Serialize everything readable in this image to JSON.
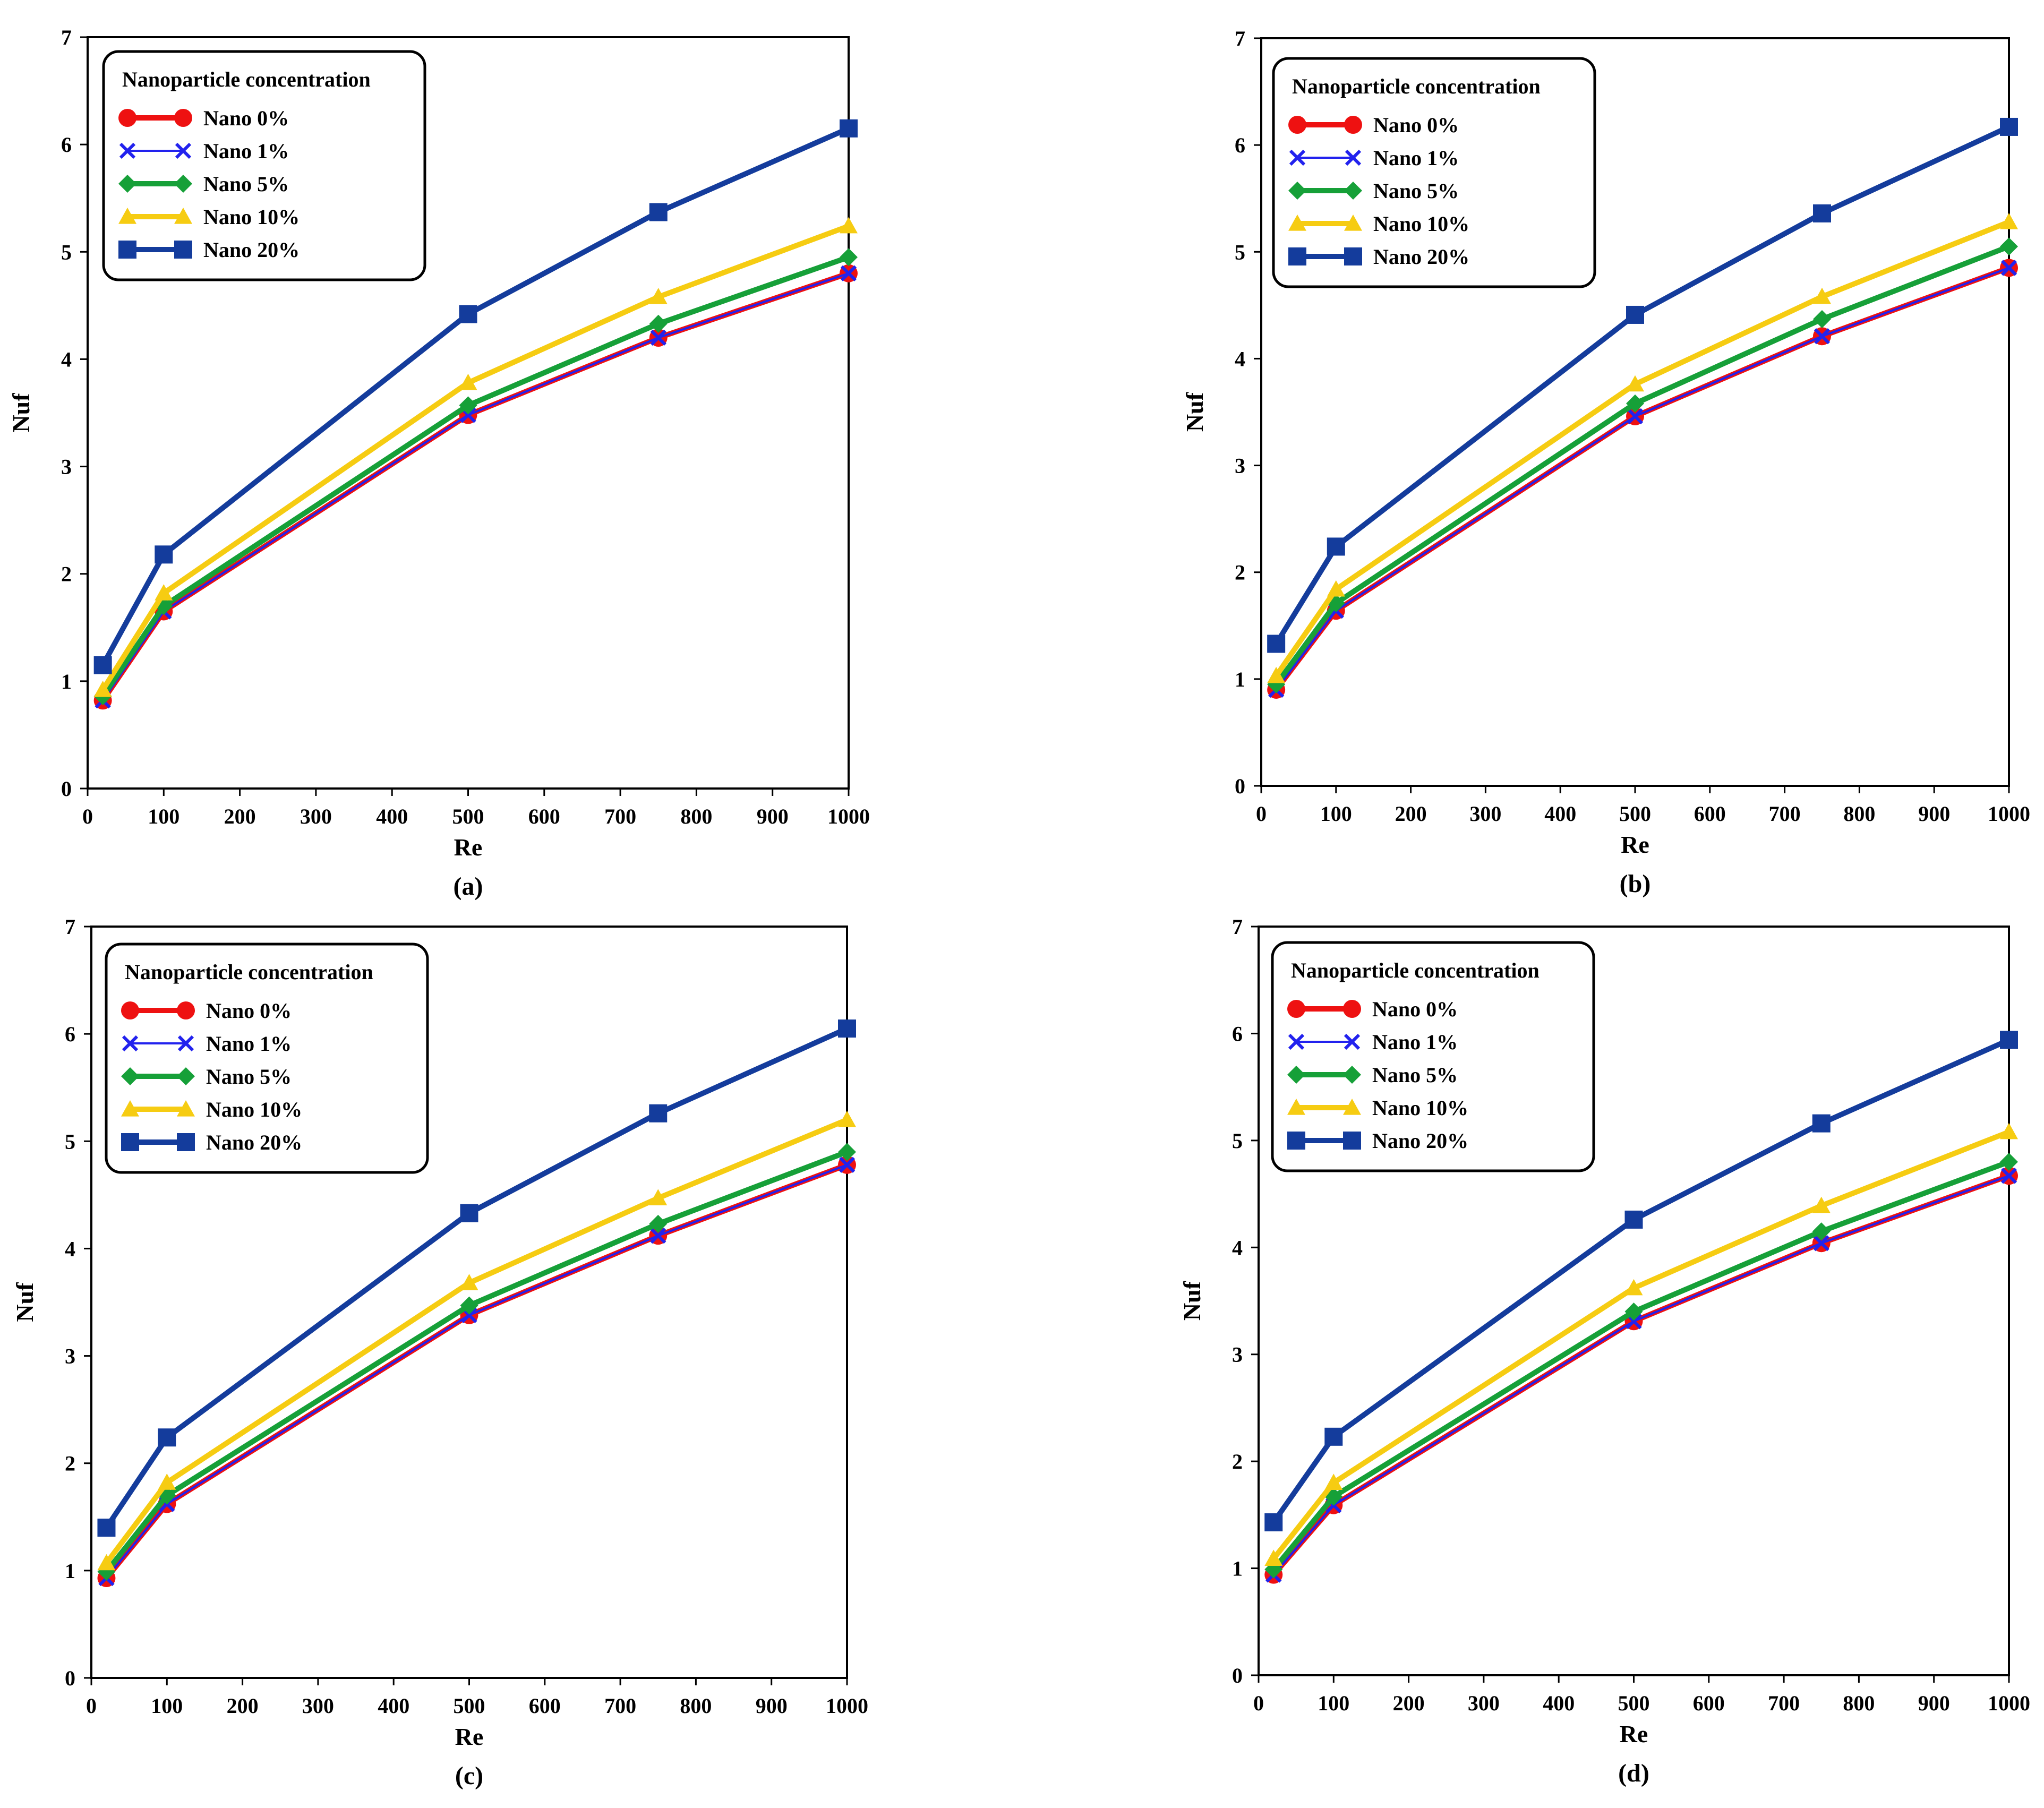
{
  "figure": {
    "legend_title": "Nanoparticle concentration",
    "series_styles": [
      {
        "name": "Nano 0%",
        "color": "#ee1111",
        "marker": "circle"
      },
      {
        "name": "Nano 1%",
        "color": "#2222ee",
        "marker": "x"
      },
      {
        "name": "Nano 5%",
        "color": "#16a038",
        "marker": "diamond"
      },
      {
        "name": "Nano 10%",
        "color": "#f6cc12",
        "marker": "triangle"
      },
      {
        "name": "Nano 20%",
        "color": "#143c9c",
        "marker": "square"
      }
    ]
  },
  "chart_data": [
    {
      "type": "line",
      "panel_label": "(a)",
      "xlabel": "Re",
      "ylabel": "Nuf",
      "xlim": [
        0,
        1000
      ],
      "ylim": [
        0,
        7
      ],
      "xticks": [
        0,
        100,
        200,
        300,
        400,
        500,
        600,
        700,
        800,
        900,
        1000
      ],
      "yticks": [
        0,
        1,
        2,
        3,
        4,
        5,
        6,
        7
      ],
      "x": [
        20,
        100,
        500,
        750,
        1000
      ],
      "legend_title": "Nanoparticle concentration",
      "series": [
        {
          "name": "Nano 0%",
          "values": [
            0.82,
            1.65,
            3.48,
            4.2,
            4.8
          ]
        },
        {
          "name": "Nano 1%",
          "values": [
            0.82,
            1.65,
            3.48,
            4.2,
            4.8
          ]
        },
        {
          "name": "Nano 5%",
          "values": [
            0.86,
            1.7,
            3.57,
            4.33,
            4.95
          ]
        },
        {
          "name": "Nano 10%",
          "values": [
            0.92,
            1.82,
            3.78,
            4.58,
            5.24
          ]
        },
        {
          "name": "Nano 20%",
          "values": [
            1.15,
            2.18,
            4.42,
            5.37,
            6.15
          ]
        }
      ]
    },
    {
      "type": "line",
      "panel_label": "(b)",
      "xlabel": "Re",
      "ylabel": "Nuf",
      "xlim": [
        0,
        1000
      ],
      "ylim": [
        0,
        7
      ],
      "xticks": [
        0,
        100,
        200,
        300,
        400,
        500,
        600,
        700,
        800,
        900,
        1000
      ],
      "yticks": [
        0,
        1,
        2,
        3,
        4,
        5,
        6,
        7
      ],
      "x": [
        20,
        100,
        500,
        750,
        1000
      ],
      "legend_title": "Nanoparticle concentration",
      "series": [
        {
          "name": "Nano 0%",
          "values": [
            0.9,
            1.64,
            3.46,
            4.21,
            4.85
          ]
        },
        {
          "name": "Nano 1%",
          "values": [
            0.9,
            1.64,
            3.46,
            4.21,
            4.85
          ]
        },
        {
          "name": "Nano 5%",
          "values": [
            0.95,
            1.71,
            3.58,
            4.37,
            5.05
          ]
        },
        {
          "name": "Nano 10%",
          "values": [
            1.03,
            1.84,
            3.76,
            4.58,
            5.28
          ]
        },
        {
          "name": "Nano 20%",
          "values": [
            1.33,
            2.24,
            4.41,
            5.36,
            6.17
          ]
        }
      ]
    },
    {
      "type": "line",
      "panel_label": "(c)",
      "xlabel": "Re",
      "ylabel": "Nuf",
      "xlim": [
        0,
        1000
      ],
      "ylim": [
        0,
        7
      ],
      "xticks": [
        0,
        100,
        200,
        300,
        400,
        500,
        600,
        700,
        800,
        900,
        1000
      ],
      "yticks": [
        0,
        1,
        2,
        3,
        4,
        5,
        6,
        7
      ],
      "x": [
        20,
        100,
        500,
        750,
        1000
      ],
      "legend_title": "Nanoparticle concentration",
      "series": [
        {
          "name": "Nano 0%",
          "values": [
            0.93,
            1.62,
            3.38,
            4.12,
            4.78
          ]
        },
        {
          "name": "Nano 1%",
          "values": [
            0.93,
            1.62,
            3.38,
            4.12,
            4.78
          ]
        },
        {
          "name": "Nano 5%",
          "values": [
            0.99,
            1.7,
            3.47,
            4.23,
            4.9
          ]
        },
        {
          "name": "Nano 10%",
          "values": [
            1.07,
            1.82,
            3.68,
            4.47,
            5.2
          ]
        },
        {
          "name": "Nano 20%",
          "values": [
            1.4,
            2.24,
            4.33,
            5.26,
            6.05
          ]
        }
      ]
    },
    {
      "type": "line",
      "panel_label": "(d)",
      "xlabel": "Re",
      "ylabel": "Nuf",
      "xlim": [
        0,
        1000
      ],
      "ylim": [
        0,
        7
      ],
      "xticks": [
        0,
        100,
        200,
        300,
        400,
        500,
        600,
        700,
        800,
        900,
        1000
      ],
      "yticks": [
        0,
        1,
        2,
        3,
        4,
        5,
        6,
        7
      ],
      "x": [
        20,
        100,
        500,
        750,
        1000
      ],
      "legend_title": "Nanoparticle concentration",
      "series": [
        {
          "name": "Nano 0%",
          "values": [
            0.94,
            1.59,
            3.31,
            4.04,
            4.67
          ]
        },
        {
          "name": "Nano 1%",
          "values": [
            0.94,
            1.59,
            3.31,
            4.04,
            4.67
          ]
        },
        {
          "name": "Nano 5%",
          "values": [
            0.99,
            1.67,
            3.4,
            4.15,
            4.8
          ]
        },
        {
          "name": "Nano 10%",
          "values": [
            1.09,
            1.8,
            3.62,
            4.39,
            5.08
          ]
        },
        {
          "name": "Nano 20%",
          "values": [
            1.43,
            2.23,
            4.26,
            5.16,
            5.94
          ]
        }
      ]
    }
  ]
}
